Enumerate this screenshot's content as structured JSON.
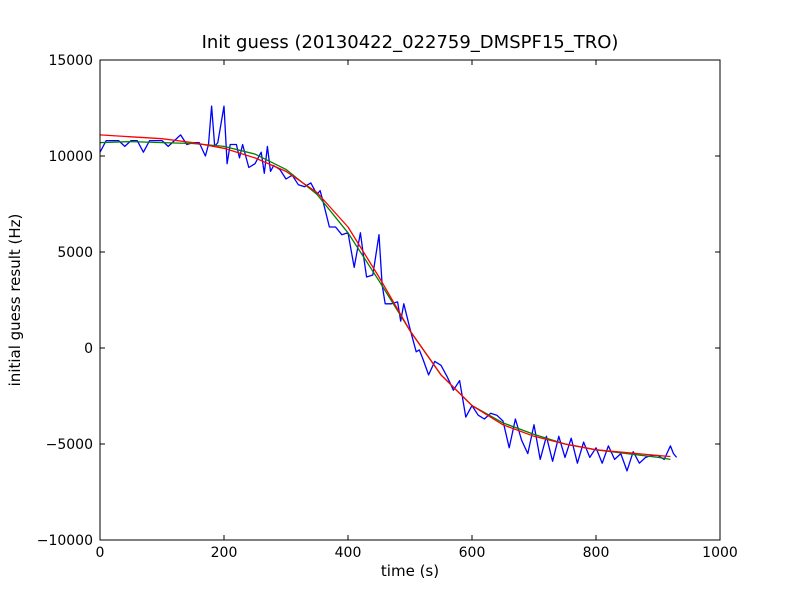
{
  "chart_data": {
    "type": "line",
    "title": "Init guess (20130422_022759_DMSPF15_TRO)",
    "xlabel": "time (s)",
    "ylabel": "initial guess result (Hz)",
    "xlim": [
      0,
      1000
    ],
    "ylim": [
      -10000,
      15000
    ],
    "x_ticks": [
      "0",
      "200",
      "400",
      "600",
      "800",
      "1000"
    ],
    "y_ticks": [
      "−10000",
      "−5000",
      "0",
      "5000",
      "10000",
      "15000"
    ],
    "x_tick_values": [
      0,
      200,
      400,
      600,
      800,
      1000
    ],
    "y_tick_values": [
      -10000,
      -5000,
      0,
      5000,
      10000,
      15000
    ],
    "grid": false,
    "series": [
      {
        "color": "#0000ff",
        "style": "noisy",
        "x": [
          0,
          10,
          20,
          30,
          40,
          50,
          60,
          70,
          80,
          90,
          100,
          110,
          120,
          130,
          140,
          150,
          160,
          170,
          175,
          180,
          185,
          190,
          200,
          205,
          210,
          220,
          225,
          230,
          240,
          250,
          260,
          265,
          270,
          275,
          280,
          290,
          300,
          310,
          320,
          330,
          340,
          350,
          355,
          360,
          370,
          380,
          390,
          400,
          410,
          420,
          425,
          430,
          440,
          450,
          455,
          460,
          470,
          480,
          485,
          490,
          500,
          510,
          515,
          520,
          530,
          540,
          550,
          560,
          570,
          580,
          590,
          600,
          610,
          620,
          630,
          640,
          650,
          660,
          670,
          680,
          690,
          700,
          710,
          720,
          730,
          740,
          750,
          760,
          770,
          780,
          790,
          800,
          810,
          820,
          830,
          840,
          850,
          860,
          870,
          880,
          890,
          900,
          910,
          920,
          925,
          930
        ],
        "y": [
          10200,
          10800,
          10800,
          10800,
          10500,
          10800,
          10800,
          10200,
          10800,
          10800,
          10800,
          10500,
          10800,
          11100,
          10600,
          10700,
          10700,
          10000,
          10600,
          12600,
          10500,
          10700,
          12600,
          9600,
          10600,
          10600,
          9900,
          10600,
          9400,
          9600,
          10200,
          9100,
          10500,
          9200,
          9500,
          9300,
          8800,
          9000,
          8500,
          8400,
          8600,
          8000,
          8200,
          7600,
          6300,
          6300,
          5900,
          6000,
          4200,
          6000,
          4800,
          3700,
          3800,
          5900,
          3300,
          2300,
          2300,
          2400,
          1400,
          2300,
          1000,
          -200,
          -100,
          -500,
          -1400,
          -700,
          -900,
          -1500,
          -2200,
          -1700,
          -3600,
          -3000,
          -3500,
          -3700,
          -3400,
          -3500,
          -3800,
          -5200,
          -3700,
          -4800,
          -5500,
          -4000,
          -5800,
          -4600,
          -5900,
          -4600,
          -5700,
          -4700,
          -6000,
          -4900,
          -5700,
          -5200,
          -6000,
          -5100,
          -5800,
          -5500,
          -6400,
          -5400,
          -6000,
          -5700,
          -5600,
          -5600,
          -5800,
          -5100,
          -5500,
          -5700
        ]
      },
      {
        "color": "#008000",
        "style": "smooth",
        "x": [
          0,
          50,
          100,
          150,
          200,
          250,
          300,
          350,
          400,
          450,
          500,
          550,
          600,
          650,
          700,
          750,
          800,
          850,
          900,
          920
        ],
        "y": [
          10700,
          10750,
          10700,
          10650,
          10500,
          10100,
          9300,
          8000,
          6000,
          3500,
          900,
          -1400,
          -3000,
          -3900,
          -4500,
          -5000,
          -5300,
          -5500,
          -5700,
          -5800
        ]
      },
      {
        "color": "#ff0000",
        "style": "smooth",
        "x": [
          0,
          50,
          100,
          150,
          200,
          250,
          300,
          350,
          400,
          450,
          500,
          550,
          600,
          650,
          700,
          750,
          800,
          850,
          900,
          920
        ],
        "y": [
          11100,
          11000,
          10900,
          10700,
          10400,
          9900,
          9200,
          8100,
          6300,
          3700,
          900,
          -1400,
          -3000,
          -4000,
          -4600,
          -5000,
          -5300,
          -5450,
          -5600,
          -5650
        ]
      }
    ]
  }
}
